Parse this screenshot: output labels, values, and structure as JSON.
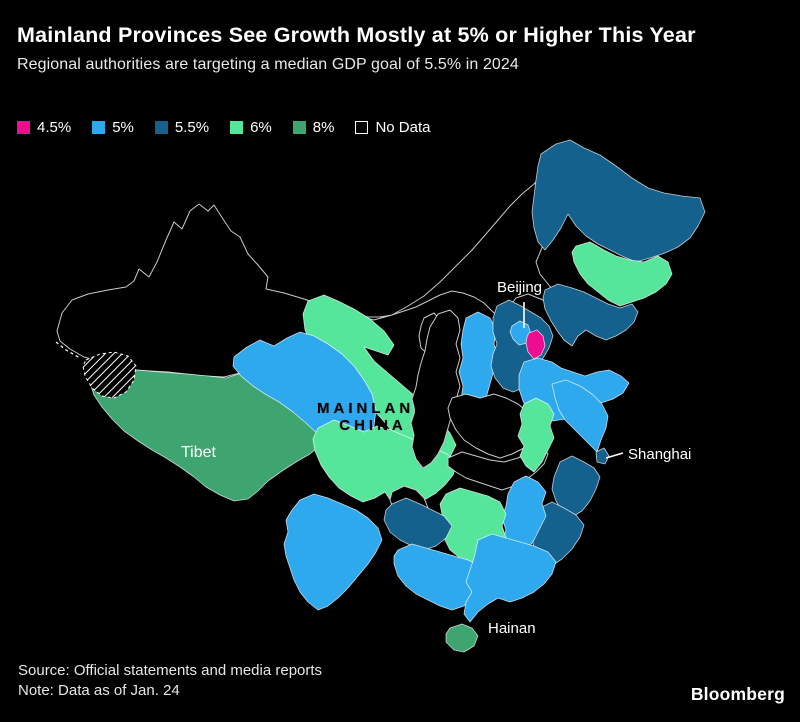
{
  "header": {
    "title": "Mainland Provinces See Growth Mostly at 5% or Higher This Year",
    "subtitle": "Regional authorities are targeting a median GDP goal of 5.5% in 2024"
  },
  "legend": {
    "items": [
      {
        "label": "4.5%",
        "color": "#ee0d8f",
        "outlined": false
      },
      {
        "label": "5%",
        "color": "#2fa9ee",
        "outlined": false
      },
      {
        "label": "5.5%",
        "color": "#15618e",
        "outlined": false
      },
      {
        "label": "6%",
        "color": "#55e59b",
        "outlined": false
      },
      {
        "label": "8%",
        "color": "#3ea571",
        "outlined": false
      },
      {
        "label": "No Data",
        "color": "#000000",
        "outlined": true
      }
    ]
  },
  "map_labels": {
    "beijing": "Beijing",
    "tibet": "Tibet",
    "shanghai": "Shanghai",
    "hainan": "Hainan",
    "mainland_line1": "MAINLAND",
    "mainland_line2": "CHINA"
  },
  "footer": {
    "source": "Source: Official statements and media reports",
    "note": "Note: Data as of Jan. 24",
    "brand": "Bloomberg"
  },
  "chart_data": {
    "type": "choropleth_map",
    "subject": "China mainland provinces 2024 GDP growth targets",
    "categories": [
      "4.5%",
      "5%",
      "5.5%",
      "6%",
      "8%",
      "No Data"
    ],
    "legend_position": "top-left",
    "regions": [
      {
        "name": "Xinjiang",
        "target": "No Data"
      },
      {
        "name": "Inner Mongolia",
        "target": "No Data"
      },
      {
        "name": "Gansu",
        "target": "6%"
      },
      {
        "name": "Tibet",
        "target": "8%"
      },
      {
        "name": "Qinghai",
        "target": "5%"
      },
      {
        "name": "Sichuan",
        "target": "6%"
      },
      {
        "name": "Ningxia",
        "target": "No Data"
      },
      {
        "name": "Shaanxi",
        "target": "No Data"
      },
      {
        "name": "Shanxi",
        "target": "5%"
      },
      {
        "name": "Hebei",
        "target": "5.5%"
      },
      {
        "name": "Beijing",
        "target": "5%"
      },
      {
        "name": "Tianjin",
        "target": "4.5%"
      },
      {
        "name": "Shandong",
        "target": "5%"
      },
      {
        "name": "Henan",
        "target": "No Data"
      },
      {
        "name": "Hubei",
        "target": "No Data"
      },
      {
        "name": "Chongqing",
        "target": "No Data"
      },
      {
        "name": "Anhui",
        "target": "6%"
      },
      {
        "name": "Jiangsu",
        "target": "5%"
      },
      {
        "name": "Shanghai",
        "target": "5.5%"
      },
      {
        "name": "Zhejiang",
        "target": "5.5%"
      },
      {
        "name": "Fujian",
        "target": "5.5%"
      },
      {
        "name": "Jiangxi",
        "target": "5%"
      },
      {
        "name": "Hunan",
        "target": "6%"
      },
      {
        "name": "Guizhou",
        "target": "5.5%"
      },
      {
        "name": "Yunnan",
        "target": "5%"
      },
      {
        "name": "Guangxi",
        "target": "5%"
      },
      {
        "name": "Guangdong",
        "target": "5%"
      },
      {
        "name": "Hainan",
        "target": "8%"
      },
      {
        "name": "Heilongjiang",
        "target": "5.5%"
      },
      {
        "name": "Jilin",
        "target": "6%"
      },
      {
        "name": "Liaoning",
        "target": "5.5%"
      }
    ]
  }
}
